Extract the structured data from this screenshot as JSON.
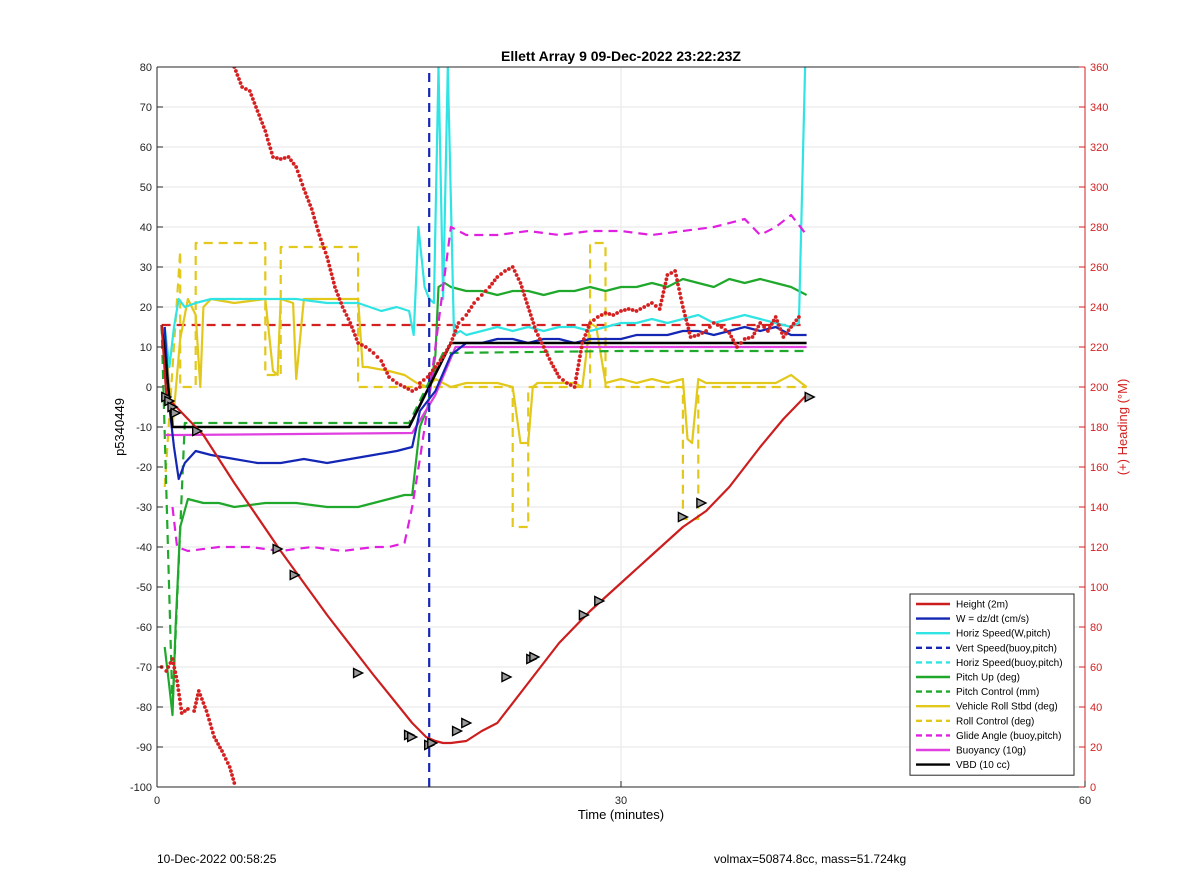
{
  "chart_data": {
    "type": "line",
    "title": "Ellett Array 9 09-Dec-2022 23:22:23Z",
    "xlabel": "Time (minutes)",
    "ylabel": "p5340449",
    "y2label": "(+) Heading (°M)",
    "xlim": [
      0,
      60
    ],
    "ylim": [
      -100,
      80
    ],
    "y2lim": [
      0,
      360
    ],
    "xticks": [
      0,
      30,
      60
    ],
    "yticks": [
      -100,
      -90,
      -80,
      -70,
      -60,
      -50,
      -40,
      -30,
      -20,
      -10,
      0,
      10,
      20,
      30,
      40,
      50,
      60,
      70,
      80
    ],
    "y2ticks": [
      0,
      20,
      40,
      60,
      80,
      100,
      120,
      140,
      160,
      180,
      200,
      220,
      240,
      260,
      280,
      300,
      320,
      340,
      360
    ],
    "grid": true,
    "legend_position": "bottom-right",
    "colors": {
      "heading": "#d42020",
      "height": "#cc1e1e",
      "w": "#1426b4",
      "horiz": "#31e4e4",
      "pitch": "#1fa82b",
      "roll": "#e3c81c",
      "glide": "#e020e0",
      "buoy": "#e040e0",
      "vbd": "#000000"
    },
    "series": [
      {
        "name": "Height (2m)",
        "color": "#cc1e1e",
        "dash": "solid",
        "x": [
          0.3,
          0.6,
          1.0,
          1.5,
          2.0,
          3.0,
          5.0,
          8.0,
          11.0,
          14.0,
          16.5,
          17.4,
          18.0,
          18.5,
          19.0,
          20.0,
          21.0,
          22.0,
          24.0,
          26.0,
          28.0,
          30.0,
          32.0,
          34.0,
          35.5,
          37.0,
          39.0,
          40.5,
          42.0
        ],
        "y": [
          15.5,
          -2,
          -4,
          -6,
          -8,
          -12,
          -24,
          -41,
          -57,
          -72,
          -84,
          -87.5,
          -88.5,
          -89,
          -89,
          -88.5,
          -86,
          -84,
          -74,
          -64,
          -56,
          -49,
          -42,
          -35,
          -31,
          -25,
          -15,
          -8,
          -2
        ]
      },
      {
        "name": "W = dz/dt (cm/s)",
        "color": "#1426b4",
        "dash": "solid",
        "x": [
          0.5,
          0.8,
          1.1,
          1.4,
          1.8,
          2.5,
          3.5,
          5,
          6.5,
          8,
          9.5,
          11,
          12.5,
          14,
          15.5,
          16.5,
          17.0,
          18,
          19,
          20,
          21,
          22,
          23,
          24,
          25,
          26,
          27,
          28,
          29,
          30,
          31,
          32,
          33,
          34,
          35,
          36,
          37,
          38,
          39,
          40,
          41,
          42
        ],
        "y": [
          15,
          -5,
          -15,
          -23,
          -19,
          -16,
          -17,
          -18,
          -19,
          -19,
          -18,
          -19,
          -18,
          -17,
          -16,
          -15,
          -6,
          -1,
          8,
          11,
          11,
          12,
          12,
          11,
          12,
          12,
          11,
          12,
          12,
          12,
          13,
          13,
          13,
          14,
          14,
          13,
          14,
          15,
          14,
          15,
          13,
          13
        ]
      },
      {
        "name": "Horiz Speed(W,pitch)",
        "color": "#31e4e4",
        "dash": "solid",
        "x": [
          0.5,
          0.8,
          1.1,
          1.4,
          1.8,
          2.5,
          3.5,
          5,
          7,
          9,
          11,
          13,
          14.5,
          15.5,
          16.3,
          16.6,
          16.9,
          17.3,
          17.6,
          17.9,
          18.2,
          18.5,
          18.8,
          19.2,
          19.6,
          20,
          21,
          22,
          23,
          24,
          25,
          26,
          27,
          28,
          29,
          30,
          31,
          32,
          33,
          34,
          35,
          36,
          37,
          38,
          39,
          40,
          41,
          41.5,
          41.9
        ],
        "y": [
          15,
          5,
          15,
          22,
          20,
          21,
          22,
          22,
          22,
          22,
          21,
          21,
          19,
          20,
          19,
          13,
          40,
          25,
          22,
          21,
          80,
          22,
          80,
          13,
          14,
          13,
          14,
          15,
          14,
          15,
          14,
          15,
          15,
          14,
          15,
          16,
          16,
          17,
          16,
          17,
          18,
          16,
          17,
          18,
          17,
          16,
          15,
          16,
          80
        ]
      },
      {
        "name": "Vert Speed(buoy,pitch)",
        "color": "#1426b4",
        "dash": "dashed",
        "x": [
          17.6,
          17.6
        ],
        "y": [
          -100,
          80
        ]
      },
      {
        "name": "Horiz Speed(buoy,pitch)",
        "color": "#31e4e4",
        "dash": "dashed",
        "x": [
          0.3,
          41.8
        ],
        "y": [
          15.5,
          15.5
        ]
      },
      {
        "name": "Pitch Up (deg)",
        "color": "#1fa82b",
        "dash": "solid",
        "x": [
          0.5,
          0.8,
          1.0,
          1.2,
          1.5,
          2.0,
          3.0,
          4.0,
          5.0,
          7.0,
          9.0,
          11.0,
          13.0,
          15.0,
          16.0,
          16.5,
          17.0,
          17.5,
          18.0,
          18.2,
          18.6,
          19,
          20,
          21,
          22,
          23,
          24,
          25,
          26,
          27,
          28,
          29,
          30,
          31,
          32,
          33,
          34,
          35,
          36,
          37,
          38,
          39,
          40,
          41,
          42
        ],
        "y": [
          -65,
          -75,
          -82,
          -60,
          -35,
          -28,
          -29,
          -29,
          -30,
          -29,
          -29,
          -30,
          -30,
          -28,
          -27,
          -27,
          -10,
          -5,
          8,
          25,
          26,
          25,
          24,
          24,
          23,
          24,
          24,
          23,
          24,
          24,
          25,
          24,
          25,
          25,
          26,
          25,
          27,
          26,
          25,
          27,
          26,
          27,
          26,
          25,
          23
        ]
      },
      {
        "name": "Pitch Control (mm)",
        "color": "#1fa82b",
        "dash": "dashed",
        "x": [
          0.3,
          1.0,
          1.8,
          16.3,
          18.5,
          30,
          42
        ],
        "y": [
          15.5,
          -80,
          -9,
          -9,
          8.5,
          9,
          9
        ]
      },
      {
        "name": "Vehicle Roll Stbd (deg)",
        "color": "#e3c81c",
        "dash": "solid",
        "x": [
          0.5,
          1,
          1.5,
          2,
          2.5,
          2.8,
          3,
          3.5,
          5,
          7,
          7.5,
          7.8,
          8,
          8.8,
          9,
          9.5,
          11,
          13,
          13.3,
          13.6,
          15,
          16,
          16.8,
          17.5,
          18,
          18.5,
          19,
          20,
          22,
          23,
          23.5,
          24,
          24.3,
          24.6,
          26,
          27,
          27.5,
          28,
          28.4,
          29,
          30,
          31,
          32,
          33,
          34,
          34.3,
          34.6,
          35,
          35.5,
          36,
          38,
          40,
          41,
          42
        ],
        "y": [
          15,
          -10,
          12,
          22,
          18,
          0,
          20,
          22,
          21,
          22,
          4,
          3,
          22,
          21,
          2,
          22,
          22,
          22,
          5,
          5,
          4,
          3,
          1,
          0,
          2,
          1,
          0,
          1,
          1,
          0,
          -14,
          -14,
          0,
          1,
          1,
          1,
          0,
          16,
          15,
          1,
          2,
          1,
          2,
          1,
          2,
          -13,
          -14,
          2,
          1,
          1,
          1,
          1,
          3,
          0
        ]
      },
      {
        "name": "Roll Control (deg)",
        "color": "#e3c81c",
        "dash": "dashed",
        "x": [
          0.5,
          1.5,
          1.5,
          2.5,
          2.5,
          3.0,
          3.0,
          7.0,
          7.0,
          8.0,
          8.0,
          10.5,
          10.5,
          13.0,
          13.0,
          16.5,
          16.5,
          23.0,
          23.0,
          24.0,
          24.0,
          28.0,
          28.0,
          29.0,
          29.0,
          34.0,
          34.0,
          35.0,
          35.0,
          42
        ],
        "y": [
          -25,
          34,
          0,
          0,
          36,
          36,
          36,
          36,
          3,
          3,
          35,
          35,
          35,
          35,
          0,
          0,
          0,
          0,
          -35,
          -35,
          0,
          0,
          36,
          36,
          0,
          0,
          -33,
          -33,
          0,
          0
        ]
      },
      {
        "name": "Glide Angle (buoy,pitch)",
        "color": "#e020e0",
        "dash": "dashed",
        "x": [
          1.0,
          1.3,
          2,
          4,
          6,
          8,
          10,
          12,
          14,
          15,
          16,
          16.5,
          17,
          17.5,
          18,
          18.5,
          19,
          20,
          22,
          24,
          26,
          28,
          30,
          32,
          34,
          36,
          38,
          39,
          40,
          41,
          42
        ],
        "y": [
          -30,
          -40,
          -41,
          -40,
          -40,
          -41,
          -40,
          -41,
          -40,
          -40,
          -39,
          -30,
          -18,
          -5,
          10,
          25,
          40,
          38,
          38,
          39,
          38,
          39,
          39,
          38,
          39,
          40,
          42,
          38,
          40,
          43,
          38
        ]
      },
      {
        "name": "Buoyancy (10g)",
        "color": "#e040e0",
        "dash": "solid",
        "x": [
          0.5,
          1.5,
          16.5,
          18.0,
          19.3,
          42
        ],
        "y": [
          -12,
          -12,
          -11.5,
          -2,
          10,
          10
        ]
      },
      {
        "name": "VBD (10 cc)",
        "color": "#000000",
        "dash": "solid",
        "x": [
          0.3,
          1.0,
          1.8,
          16.3,
          19.0,
          42
        ],
        "y": [
          15.5,
          -10,
          -10,
          -10,
          11,
          11
        ]
      }
    ],
    "heading_series": {
      "name": "Heading",
      "color": "#d42020",
      "dash": "dotted",
      "axis": "right",
      "segments": [
        {
          "x": [
            0.3,
            0.6,
            1.0,
            1.3,
            1.6,
            2.0,
            2.4,
            2.7,
            3.2,
            3.7,
            4.2,
            4.7,
            5.0
          ],
          "y": [
            60,
            58,
            64,
            53,
            37,
            39,
            38,
            48,
            38,
            25,
            18,
            10,
            2
          ]
        },
        {
          "x": [
            5.0,
            5.5,
            6.0,
            6.5,
            7.0,
            7.5,
            8.0,
            8.5,
            9.0,
            9.5,
            10.0,
            10.5,
            11.0,
            11.5,
            12.0,
            12.5,
            13.0,
            13.5,
            14.0,
            14.5,
            15.0,
            15.5,
            16.0,
            16.5,
            17.0
          ],
          "y": [
            360,
            350,
            348,
            338,
            328,
            315,
            314,
            315,
            310,
            299,
            289,
            276,
            265,
            250,
            240,
            232,
            222,
            220,
            217,
            213,
            205,
            202,
            200,
            198,
            200
          ]
        },
        {
          "x": [
            17.0,
            17.5,
            18.0,
            18.5,
            19.0,
            19.5,
            20.0,
            20.5,
            21.0,
            21.5,
            22.0,
            22.5,
            23.0,
            23.5,
            24.0,
            24.5,
            25.0,
            25.5,
            26.0,
            26.5,
            27.0,
            27.5,
            28.0,
            28.5,
            29.0,
            29.5,
            30.0,
            30.5,
            31.0,
            31.5,
            32.0,
            32.5,
            33.0,
            33.5,
            34.0,
            34.5,
            35.0,
            35.5,
            36.0,
            36.5,
            37.0,
            37.5,
            38.0,
            38.5,
            39.0,
            39.5,
            40.0,
            40.5,
            41.0,
            41.5
          ],
          "y": [
            202,
            205,
            210,
            215,
            222,
            232,
            236,
            242,
            246,
            250,
            255,
            258,
            260,
            252,
            240,
            228,
            220,
            212,
            205,
            202,
            200,
            222,
            232,
            235,
            237,
            236,
            238,
            239,
            238,
            240,
            242,
            239,
            256,
            258,
            240,
            225,
            226,
            228,
            232,
            230,
            227,
            220,
            224,
            225,
            232,
            228,
            235,
            225,
            230,
            235
          ]
        }
      ]
    },
    "markers": {
      "name": "Height markers",
      "x": [
        0.6,
        0.8,
        1.0,
        1.2,
        2.6,
        7.8,
        8.9,
        13.0,
        16.3,
        16.5,
        17.6,
        17.8,
        19.4,
        20.0,
        22.6,
        24.2,
        24.4,
        27.6,
        28.6,
        34.0,
        35.2,
        42.2
      ],
      "y": [
        -2.5,
        -3.5,
        -5,
        -6.5,
        -11,
        -40.5,
        -47,
        -71.5,
        -87,
        -87.5,
        -89.5,
        -89,
        -86,
        -84,
        -72.5,
        -68,
        -67.5,
        -57,
        -53.5,
        -32.5,
        -29,
        -2.5
      ]
    }
  },
  "footer": {
    "left": "10-Dec-2022 00:58:25",
    "right": "volmax=50874.8cc, mass=51.724kg"
  }
}
